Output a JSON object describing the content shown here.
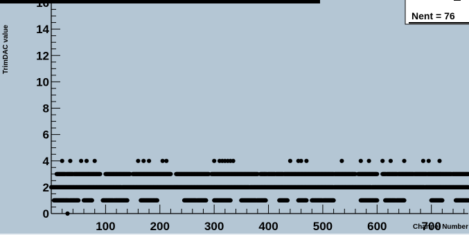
{
  "chart_data": {
    "type": "scatter",
    "title": "",
    "xlabel": "Channel Number",
    "ylabel": "TrimDAC value",
    "xlim": [
      0,
      768
    ],
    "ylim": [
      0,
      16
    ],
    "xticks": [
      100,
      200,
      300,
      400,
      500,
      600,
      700
    ],
    "yticks": [
      0,
      2,
      4,
      6,
      8,
      10,
      12,
      14,
      16
    ],
    "stats_box": {
      "entries_label": "Nent = 76"
    },
    "colors": {
      "background": "#b4c6d4",
      "marker": "#000000",
      "stats_box": "#ffffff"
    },
    "levels": [
      {
        "y": 4,
        "channels": [
          20,
          35,
          55,
          65,
          80,
          160,
          170,
          180,
          205,
          212,
          300,
          310,
          315,
          320,
          325,
          330,
          335,
          440,
          455,
          460,
          470,
          535,
          570,
          585,
          610,
          625,
          650,
          685,
          695,
          715
        ]
      },
      {
        "y": 3,
        "x_ranges": [
          [
            10,
            90
          ],
          [
            100,
            145
          ],
          [
            150,
            220
          ],
          [
            230,
            290
          ],
          [
            295,
            380
          ],
          [
            385,
            560
          ],
          [
            565,
            600
          ],
          [
            610,
            768
          ]
        ],
        "gaps": [
          27,
          41,
          95,
          147,
          224,
          292,
          381,
          398,
          413,
          428,
          521,
          563,
          602,
          617,
          638,
          668,
          692,
          738
        ]
      },
      {
        "y": 2,
        "x_ranges": [
          [
            0,
            768
          ]
        ],
        "gaps": [
          130,
          365,
          520,
          590,
          688
        ]
      },
      {
        "y": 1,
        "x_ranges": [
          [
            5,
            50
          ],
          [
            60,
            75
          ],
          [
            95,
            140
          ],
          [
            165,
            195
          ],
          [
            245,
            285
          ],
          [
            300,
            330
          ],
          [
            350,
            395
          ],
          [
            420,
            435
          ],
          [
            455,
            470
          ],
          [
            480,
            520
          ],
          [
            570,
            600
          ],
          [
            615,
            650
          ],
          [
            700,
            720
          ],
          [
            745,
            768
          ]
        ],
        "gaps": [
          33,
          115,
          268,
          378,
          500,
          635
        ]
      },
      {
        "y": 0,
        "channels": [
          30
        ]
      }
    ]
  }
}
